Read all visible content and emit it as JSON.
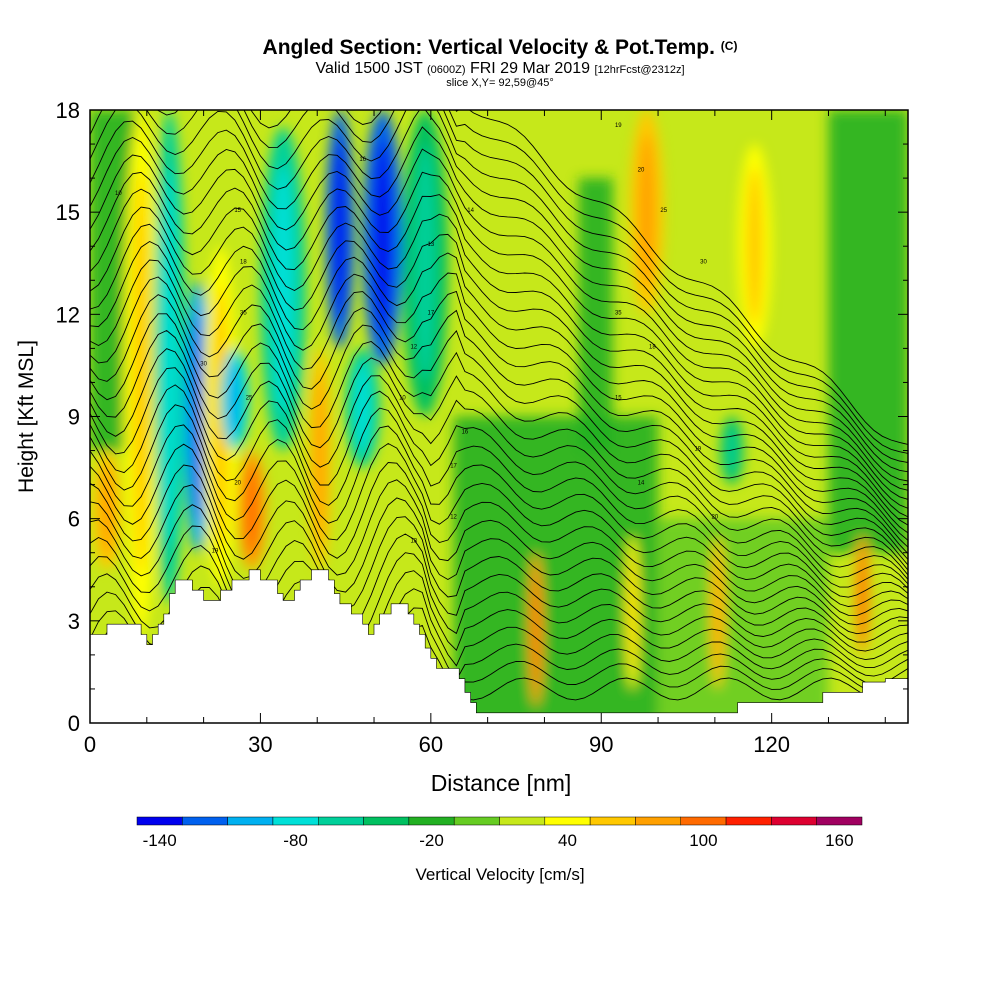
{
  "titles": {
    "main": "Angled Section: Vertical Velocity & Pot.Temp.",
    "unit_tag": "(C)",
    "valid_a": "Valid 1500 JST",
    "valid_b": "(0600Z)",
    "valid_c": "FRI 29 Mar 2019",
    "valid_d": "[12hrFcst@2312z]",
    "slice": "slice X,Y= 92,59@45°"
  },
  "chart_data": {
    "type": "heatmap",
    "title": "Angled Section: Vertical Velocity & Pot.Temp.",
    "xlabel": "Distance [nm]",
    "ylabel": "Height [Kft MSL]",
    "xlim": [
      0,
      144
    ],
    "ylim": [
      0,
      18
    ],
    "x_ticks": [
      0,
      30,
      60,
      90,
      120
    ],
    "y_ticks": [
      0,
      3,
      6,
      9,
      12,
      15,
      18
    ],
    "terrain_profile": [
      [
        0,
        2.6
      ],
      [
        3,
        2.9
      ],
      [
        6,
        2.9
      ],
      [
        9,
        2.6
      ],
      [
        10,
        2.3
      ],
      [
        11,
        2.6
      ],
      [
        12,
        2.9
      ],
      [
        13,
        3.2
      ],
      [
        14,
        3.8
      ],
      [
        15,
        4.2
      ],
      [
        17,
        4.2
      ],
      [
        18,
        3.9
      ],
      [
        20,
        3.6
      ],
      [
        23,
        3.9
      ],
      [
        25,
        4.2
      ],
      [
        28,
        4.5
      ],
      [
        30,
        4.2
      ],
      [
        33,
        3.8
      ],
      [
        34,
        3.6
      ],
      [
        36,
        3.9
      ],
      [
        37,
        4.2
      ],
      [
        39,
        4.5
      ],
      [
        41,
        4.5
      ],
      [
        42,
        4.2
      ],
      [
        43,
        3.8
      ],
      [
        44,
        3.5
      ],
      [
        46,
        3.2
      ],
      [
        48,
        2.9
      ],
      [
        49,
        2.6
      ],
      [
        50,
        2.9
      ],
      [
        51,
        3.2
      ],
      [
        53,
        3.5
      ],
      [
        56,
        3.2
      ],
      [
        57,
        2.9
      ],
      [
        58,
        2.6
      ],
      [
        59,
        2.2
      ],
      [
        60,
        1.9
      ],
      [
        61,
        1.6
      ],
      [
        64,
        1.6
      ],
      [
        65,
        1.3
      ],
      [
        66,
        0.9
      ],
      [
        67,
        0.6
      ],
      [
        68,
        0.3
      ],
      [
        80,
        0.3
      ],
      [
        100,
        0.3
      ],
      [
        113,
        0.3
      ],
      [
        114,
        0.6
      ],
      [
        120,
        0.6
      ],
      [
        128,
        0.6
      ],
      [
        129,
        0.9
      ],
      [
        135,
        0.9
      ],
      [
        136,
        1.2
      ],
      [
        140,
        1.3
      ],
      [
        144,
        1.3
      ]
    ],
    "colorbar": {
      "label": "Vertical Velocity [cm/s]",
      "bounds": [
        -150,
        170
      ],
      "step": 20,
      "tick_labels": [
        "-140",
        "-80",
        "-20",
        "40",
        "100",
        "160"
      ],
      "tick_values": [
        -140,
        -80,
        -20,
        40,
        100,
        160
      ],
      "colors": [
        "#0000ee",
        "#0060ee",
        "#00b0f0",
        "#00e0d8",
        "#00d09a",
        "#00c060",
        "#22b022",
        "#66cc22",
        "#c6e81a",
        "#ffff00",
        "#ffc800",
        "#ffa000",
        "#ff6a00",
        "#ff2000",
        "#dd0030",
        "#a00060"
      ]
    },
    "velocity_features": [
      {
        "x": 9,
        "w": 3,
        "ybot": 2.6,
        "ytop": 18,
        "value": 40
      },
      {
        "x": 3,
        "w": 2.5,
        "ybot": 4.5,
        "ytop": 8,
        "value": 60
      },
      {
        "x": 14,
        "w": 2.8,
        "ybot": 3.5,
        "ytop": 18,
        "value": -70
      },
      {
        "x": 19,
        "w": 2.5,
        "ybot": 5,
        "ytop": 13,
        "value": -95
      },
      {
        "x": 23,
        "w": 3,
        "ybot": 4,
        "ytop": 14,
        "value": 40
      },
      {
        "x": 28.5,
        "w": 2.5,
        "ybot": 4.5,
        "ytop": 8,
        "value": 85
      },
      {
        "x": 25.5,
        "w": 2.5,
        "ybot": 8,
        "ytop": 11,
        "value": -75
      },
      {
        "x": 34,
        "w": 4,
        "ybot": 8,
        "ytop": 17.5,
        "value": -65
      },
      {
        "x": 40.5,
        "w": 2,
        "ybot": 4.5,
        "ytop": 11,
        "value": 65
      },
      {
        "x": 44,
        "w": 2.5,
        "ybot": 11,
        "ytop": 18,
        "value": -130
      },
      {
        "x": 51.5,
        "w": 3.5,
        "ybot": 10.5,
        "ytop": 18,
        "value": -125
      },
      {
        "x": 48,
        "w": 3,
        "ybot": 7.5,
        "ytop": 11,
        "value": -70
      },
      {
        "x": 59,
        "w": 4,
        "ybot": 9,
        "ytop": 18,
        "value": -35
      },
      {
        "x": 78.5,
        "w": 1.2,
        "ybot": 0.5,
        "ytop": 5,
        "value": 85
      },
      {
        "x": 95.5,
        "w": 1.2,
        "ybot": 1,
        "ytop": 5.5,
        "value": 45
      },
      {
        "x": 98,
        "w": 3,
        "ybot": 12,
        "ytop": 18,
        "value": 50
      },
      {
        "x": 110.5,
        "w": 1.3,
        "ybot": 1,
        "ytop": 5.5,
        "value": 65
      },
      {
        "x": 117,
        "w": 3,
        "ybot": 11,
        "ytop": 17,
        "value": 45
      },
      {
        "x": 136,
        "w": 1.3,
        "ybot": 2,
        "ytop": 5.5,
        "value": 85
      },
      {
        "x": 113,
        "w": 2,
        "ybot": 7,
        "ytop": 9,
        "value": -40
      }
    ],
    "potential_temperature_contours": {
      "interval": 1,
      "units": "C",
      "labels": [
        "19",
        "20",
        "25",
        "30",
        "35",
        "18",
        "15",
        "10",
        "16",
        "17",
        "12",
        "13",
        "14"
      ]
    }
  }
}
